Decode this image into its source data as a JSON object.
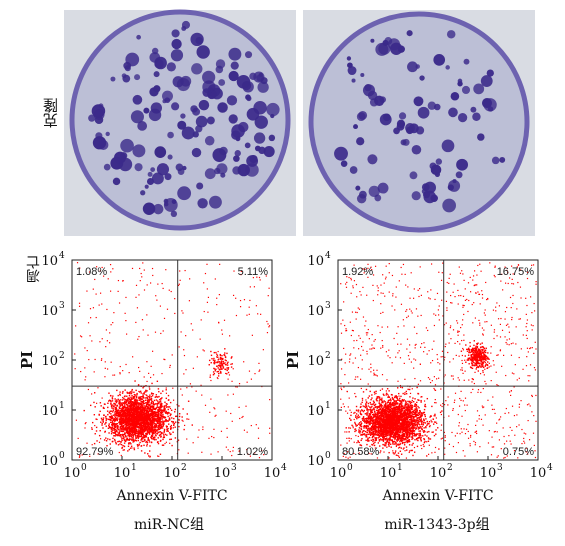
{
  "figure": {
    "top_row_label": "克隆",
    "bottom_row_label": "凋亡"
  },
  "colors": {
    "plate_bg": "#c8c8d8",
    "colony": "#3b2a8a",
    "dot": "#ff0000",
    "gate_line": "#333333"
  },
  "panels": [
    {
      "group_label": "miR-NC组",
      "quadrants": {
        "ul": "1.08%",
        "ur": "5.11%",
        "ll": "92.79%",
        "lr": "1.02%"
      }
    },
    {
      "group_label": "miR-1343-3p组",
      "quadrants": {
        "ul": "1.92%",
        "ur": "16.75%",
        "ll": "80.58%",
        "lr": "0.75%"
      }
    }
  ],
  "chart_data": [
    {
      "type": "scatter",
      "xlabel": "Annexin V-FITC",
      "ylabel": "PI",
      "x_scale": "log",
      "y_scale": "log",
      "xlim": [
        1,
        10000
      ],
      "ylim": [
        1,
        10000
      ],
      "x_ticks": [
        "10",
        "10",
        "10",
        "10",
        "10"
      ],
      "x_tick_exp": [
        "0",
        "1",
        "2",
        "3",
        "4"
      ],
      "y_ticks": [
        "10",
        "10",
        "10",
        "10",
        "10"
      ],
      "y_tick_exp": [
        "0",
        "1",
        "2",
        "3",
        "4"
      ],
      "quadrant_gate": {
        "x": 130,
        "y": 30
      },
      "quadrant_percentages": {
        "ul": 1.08,
        "ur": 5.11,
        "ll": 92.79,
        "lr": 1.02
      },
      "population_clusters": [
        {
          "center_x": 20,
          "center_y": 7,
          "spread": "dense"
        },
        {
          "center_x": 900,
          "center_y": 90,
          "spread": "small"
        }
      ]
    },
    {
      "type": "scatter",
      "xlabel": "Annexin V-FITC",
      "ylabel": "PI",
      "x_scale": "log",
      "y_scale": "log",
      "xlim": [
        1,
        10000
      ],
      "ylim": [
        1,
        10000
      ],
      "x_ticks": [
        "10",
        "10",
        "10",
        "10",
        "10"
      ],
      "x_tick_exp": [
        "0",
        "1",
        "2",
        "3",
        "4"
      ],
      "y_ticks": [
        "10",
        "10",
        "10",
        "10",
        "10"
      ],
      "y_tick_exp": [
        "0",
        "1",
        "2",
        "3",
        "4"
      ],
      "quadrant_gate": {
        "x": 130,
        "y": 30
      },
      "quadrant_percentages": {
        "ul": 1.92,
        "ur": 16.75,
        "ll": 80.58,
        "lr": 0.75
      },
      "population_clusters": [
        {
          "center_x": 12,
          "center_y": 6,
          "spread": "dense"
        },
        {
          "center_x": 600,
          "center_y": 120,
          "spread": "medium"
        }
      ]
    }
  ]
}
